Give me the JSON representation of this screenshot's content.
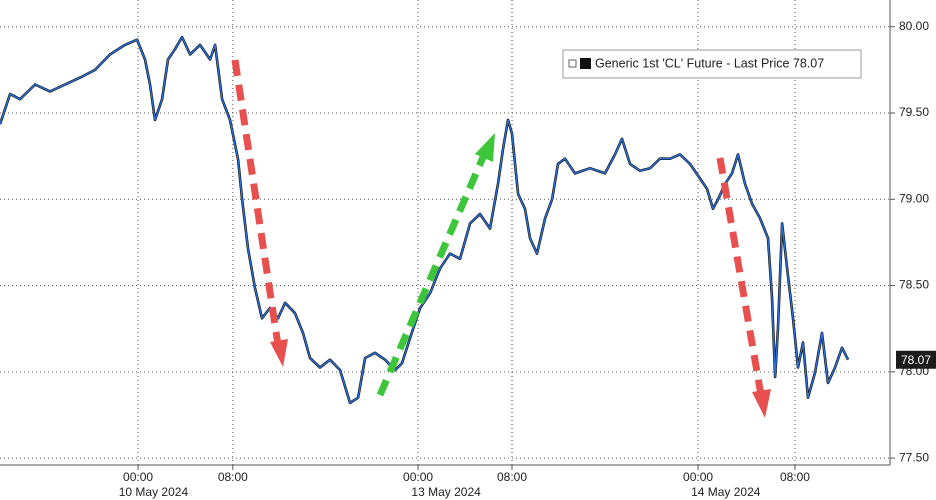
{
  "chart_data": {
    "type": "line",
    "x": [
      -11.65,
      -10.8,
      -9.96,
      -8.69,
      -7.43,
      -6.16,
      -4.89,
      -3.63,
      -2.36,
      -1.1,
      -0.08,
      0.59,
      1.01,
      1.43,
      2.03,
      2.53,
      3.12,
      3.71,
      4.39,
      5.23,
      6.08,
      6.5,
      7.09,
      7.76,
      8.44,
      8.78,
      9.28,
      9.87,
      10.46,
      11.14,
      11.81,
      12.41,
      13.25,
      13.92,
      14.51,
      15.36,
      16.2,
      17.05,
      17.89,
      18.57,
      19.16,
      20.0,
      20.84,
      21.69,
      22.28,
      22.95,
      23.8,
      24.64,
      25.49,
      26.33,
      27.17,
      28.02,
      28.86,
      29.7,
      30.38,
      30.8,
      31.22,
      31.56,
      32.07,
      32.66,
      33.08,
      33.67,
      34.35,
      34.94,
      35.44,
      36.03,
      36.88,
      38.14,
      39.41,
      40.25,
      40.84,
      41.52,
      42.36,
      43.21,
      44.05,
      44.89,
      45.74,
      46.58,
      47.43,
      48.02,
      48.52,
      48.95,
      49.54,
      50.13,
      50.63,
      51.22,
      51.81,
      52.49,
      53.16,
      53.5,
      53.76,
      54.01,
      54.35,
      54.78,
      55.27,
      55.7,
      56.12,
      56.54,
      57.13,
      57.72,
      58.23,
      58.82,
      59.41,
      59.92
    ],
    "series": [
      {
        "name": "Generic 1st 'CL' Future - Last Price 78.07",
        "color": "#2b6fd8",
        "values": [
          79.435,
          79.61,
          79.58,
          79.665,
          79.625,
          79.665,
          79.705,
          79.75,
          79.84,
          79.895,
          79.925,
          79.81,
          79.665,
          79.46,
          79.58,
          79.81,
          79.87,
          79.94,
          79.84,
          79.895,
          79.81,
          79.895,
          79.58,
          79.46,
          79.23,
          79.0,
          78.715,
          78.485,
          78.31,
          78.37,
          78.31,
          78.4,
          78.34,
          78.225,
          78.08,
          78.025,
          78.07,
          78.01,
          77.82,
          77.85,
          78.08,
          78.11,
          78.07,
          78.01,
          78.05,
          78.195,
          78.37,
          78.455,
          78.6,
          78.685,
          78.655,
          78.86,
          78.915,
          78.83,
          79.09,
          79.29,
          79.46,
          79.38,
          79.03,
          78.945,
          78.775,
          78.685,
          78.89,
          79.0,
          79.205,
          79.235,
          79.15,
          79.18,
          79.15,
          79.26,
          79.35,
          79.205,
          79.165,
          79.18,
          79.235,
          79.235,
          79.26,
          79.205,
          79.12,
          79.06,
          78.945,
          79.0,
          79.09,
          79.15,
          79.26,
          79.09,
          78.975,
          78.89,
          78.775,
          78.43,
          77.97,
          78.255,
          78.86,
          78.6,
          78.31,
          78.025,
          78.17,
          77.85,
          77.995,
          78.225,
          77.935,
          78.025,
          78.14,
          78.07
        ]
      }
    ],
    "last_price": 78.07,
    "xlim": [
      -11.65,
      63.46
    ],
    "xticks": [
      {
        "value": 0,
        "label": "00:00"
      },
      {
        "value": 8,
        "label": "08:00"
      },
      {
        "value": 23.63,
        "label": "00:00"
      },
      {
        "value": 31.56,
        "label": "08:00"
      },
      {
        "value": 47.26,
        "label": "00:00"
      },
      {
        "value": 55.44,
        "label": "08:00"
      }
    ],
    "date_labels": [
      {
        "value": 1.3,
        "label": "10 May 2024"
      },
      {
        "value": 26.0,
        "label": "13 May 2024"
      },
      {
        "value": 49.6,
        "label": "14 May 2024"
      }
    ],
    "ylim": [
      77.46,
      80.155
    ],
    "yticks": [
      {
        "value": 77.5,
        "label": "77.50"
      },
      {
        "value": 78,
        "label": "78.00"
      },
      {
        "value": 78.5,
        "label": "78.50"
      },
      {
        "value": 79,
        "label": "79.00"
      },
      {
        "value": 79.5,
        "label": "79.50"
      },
      {
        "value": 80,
        "label": "80.00"
      }
    ],
    "grid": true,
    "legend": "top-right"
  }
}
